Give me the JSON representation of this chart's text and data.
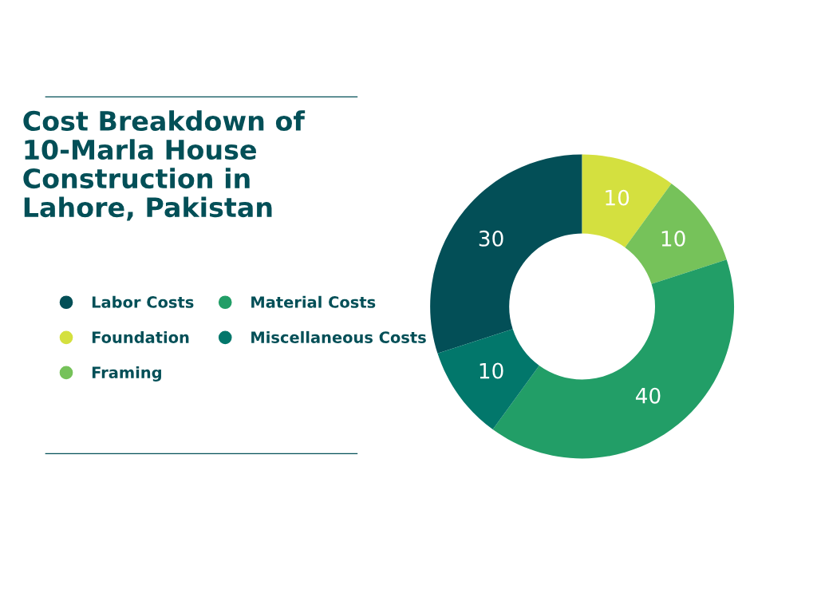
{
  "chart_data": {
    "type": "donut",
    "title": "Cost Breakdown of 10-Marla House Construction in Lahore, Pakistan",
    "categories": [
      "Labor Costs",
      "Foundation",
      "Framing",
      "Material Costs",
      "Miscellaneous Costs"
    ],
    "values": [
      30,
      10,
      10,
      40,
      10
    ],
    "colors": [
      "#034f57",
      "#d4e03f",
      "#76c25a",
      "#229e67",
      "#02776b"
    ],
    "data_labels": true,
    "legend": "left"
  }
}
